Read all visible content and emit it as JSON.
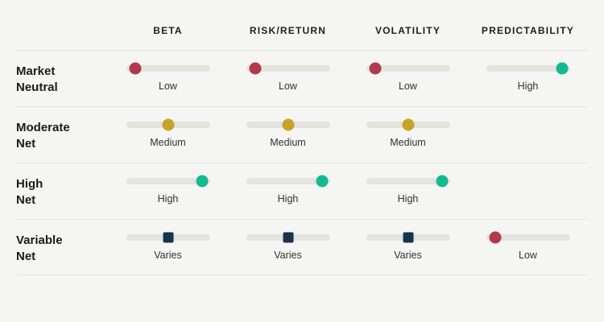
{
  "chart_data": {
    "type": "table",
    "title": "",
    "columns": [
      "BETA",
      "RISK/RETURN",
      "VOLATILITY",
      "PREDICTABILITY"
    ],
    "rows": [
      "Market Neutral",
      "Moderate Net",
      "High Net",
      "Variable Net"
    ],
    "values": [
      [
        "Low",
        "Low",
        "Low",
        "High"
      ],
      [
        "Medium",
        "Medium",
        "Medium",
        null
      ],
      [
        "High",
        "High",
        "High",
        null
      ],
      [
        "Varies",
        "Varies",
        "Varies",
        "Low"
      ]
    ],
    "level_positions": {
      "Low": "left",
      "Medium": "center",
      "High": "right",
      "Varies": "center"
    },
    "marker_colors": {
      "Low": "#b23a4e",
      "Medium": "#c9a227",
      "High": "#13b992",
      "Varies": "#17344f"
    },
    "marker_shapes": {
      "Low": "circle",
      "Medium": "circle",
      "High": "circle",
      "Varies": "square"
    },
    "legend_position": "none",
    "grid": "row-dividers"
  },
  "table": {
    "columns": [
      {
        "label": "BETA"
      },
      {
        "label": "RISK/RETURN"
      },
      {
        "label": "VOLATILITY"
      },
      {
        "label": "PREDICTABILITY"
      }
    ],
    "rows": [
      {
        "label": "Market\nNeutral",
        "cells": [
          {
            "value": "Low",
            "shape": "circle",
            "color": "#b23a4e",
            "pos": "11%"
          },
          {
            "value": "Low",
            "shape": "circle",
            "color": "#b23a4e",
            "pos": "11%"
          },
          {
            "value": "Low",
            "shape": "circle",
            "color": "#b23a4e",
            "pos": "11%"
          },
          {
            "value": "High",
            "shape": "circle",
            "color": "#13b992",
            "pos": "91%"
          }
        ]
      },
      {
        "label": "Moderate\nNet",
        "cells": [
          {
            "value": "Medium",
            "shape": "circle",
            "color": "#c9a227",
            "pos": "50%"
          },
          {
            "value": "Medium",
            "shape": "circle",
            "color": "#c9a227",
            "pos": "50%"
          },
          {
            "value": "Medium",
            "shape": "circle",
            "color": "#c9a227",
            "pos": "50%"
          },
          {
            "empty": true
          }
        ]
      },
      {
        "label": "High\nNet",
        "cells": [
          {
            "value": "High",
            "shape": "circle",
            "color": "#13b992",
            "pos": "91%"
          },
          {
            "value": "High",
            "shape": "circle",
            "color": "#13b992",
            "pos": "91%"
          },
          {
            "value": "High",
            "shape": "circle",
            "color": "#13b992",
            "pos": "91%"
          },
          {
            "empty": true
          }
        ]
      },
      {
        "label": "Variable\nNet",
        "cells": [
          {
            "value": "Varies",
            "shape": "square",
            "color": "#17344f",
            "pos": "50%"
          },
          {
            "value": "Varies",
            "shape": "square",
            "color": "#17344f",
            "pos": "50%"
          },
          {
            "value": "Varies",
            "shape": "square",
            "color": "#17344f",
            "pos": "50%"
          },
          {
            "value": "Low",
            "shape": "circle",
            "color": "#b23a4e",
            "pos": "11%"
          }
        ]
      }
    ]
  }
}
